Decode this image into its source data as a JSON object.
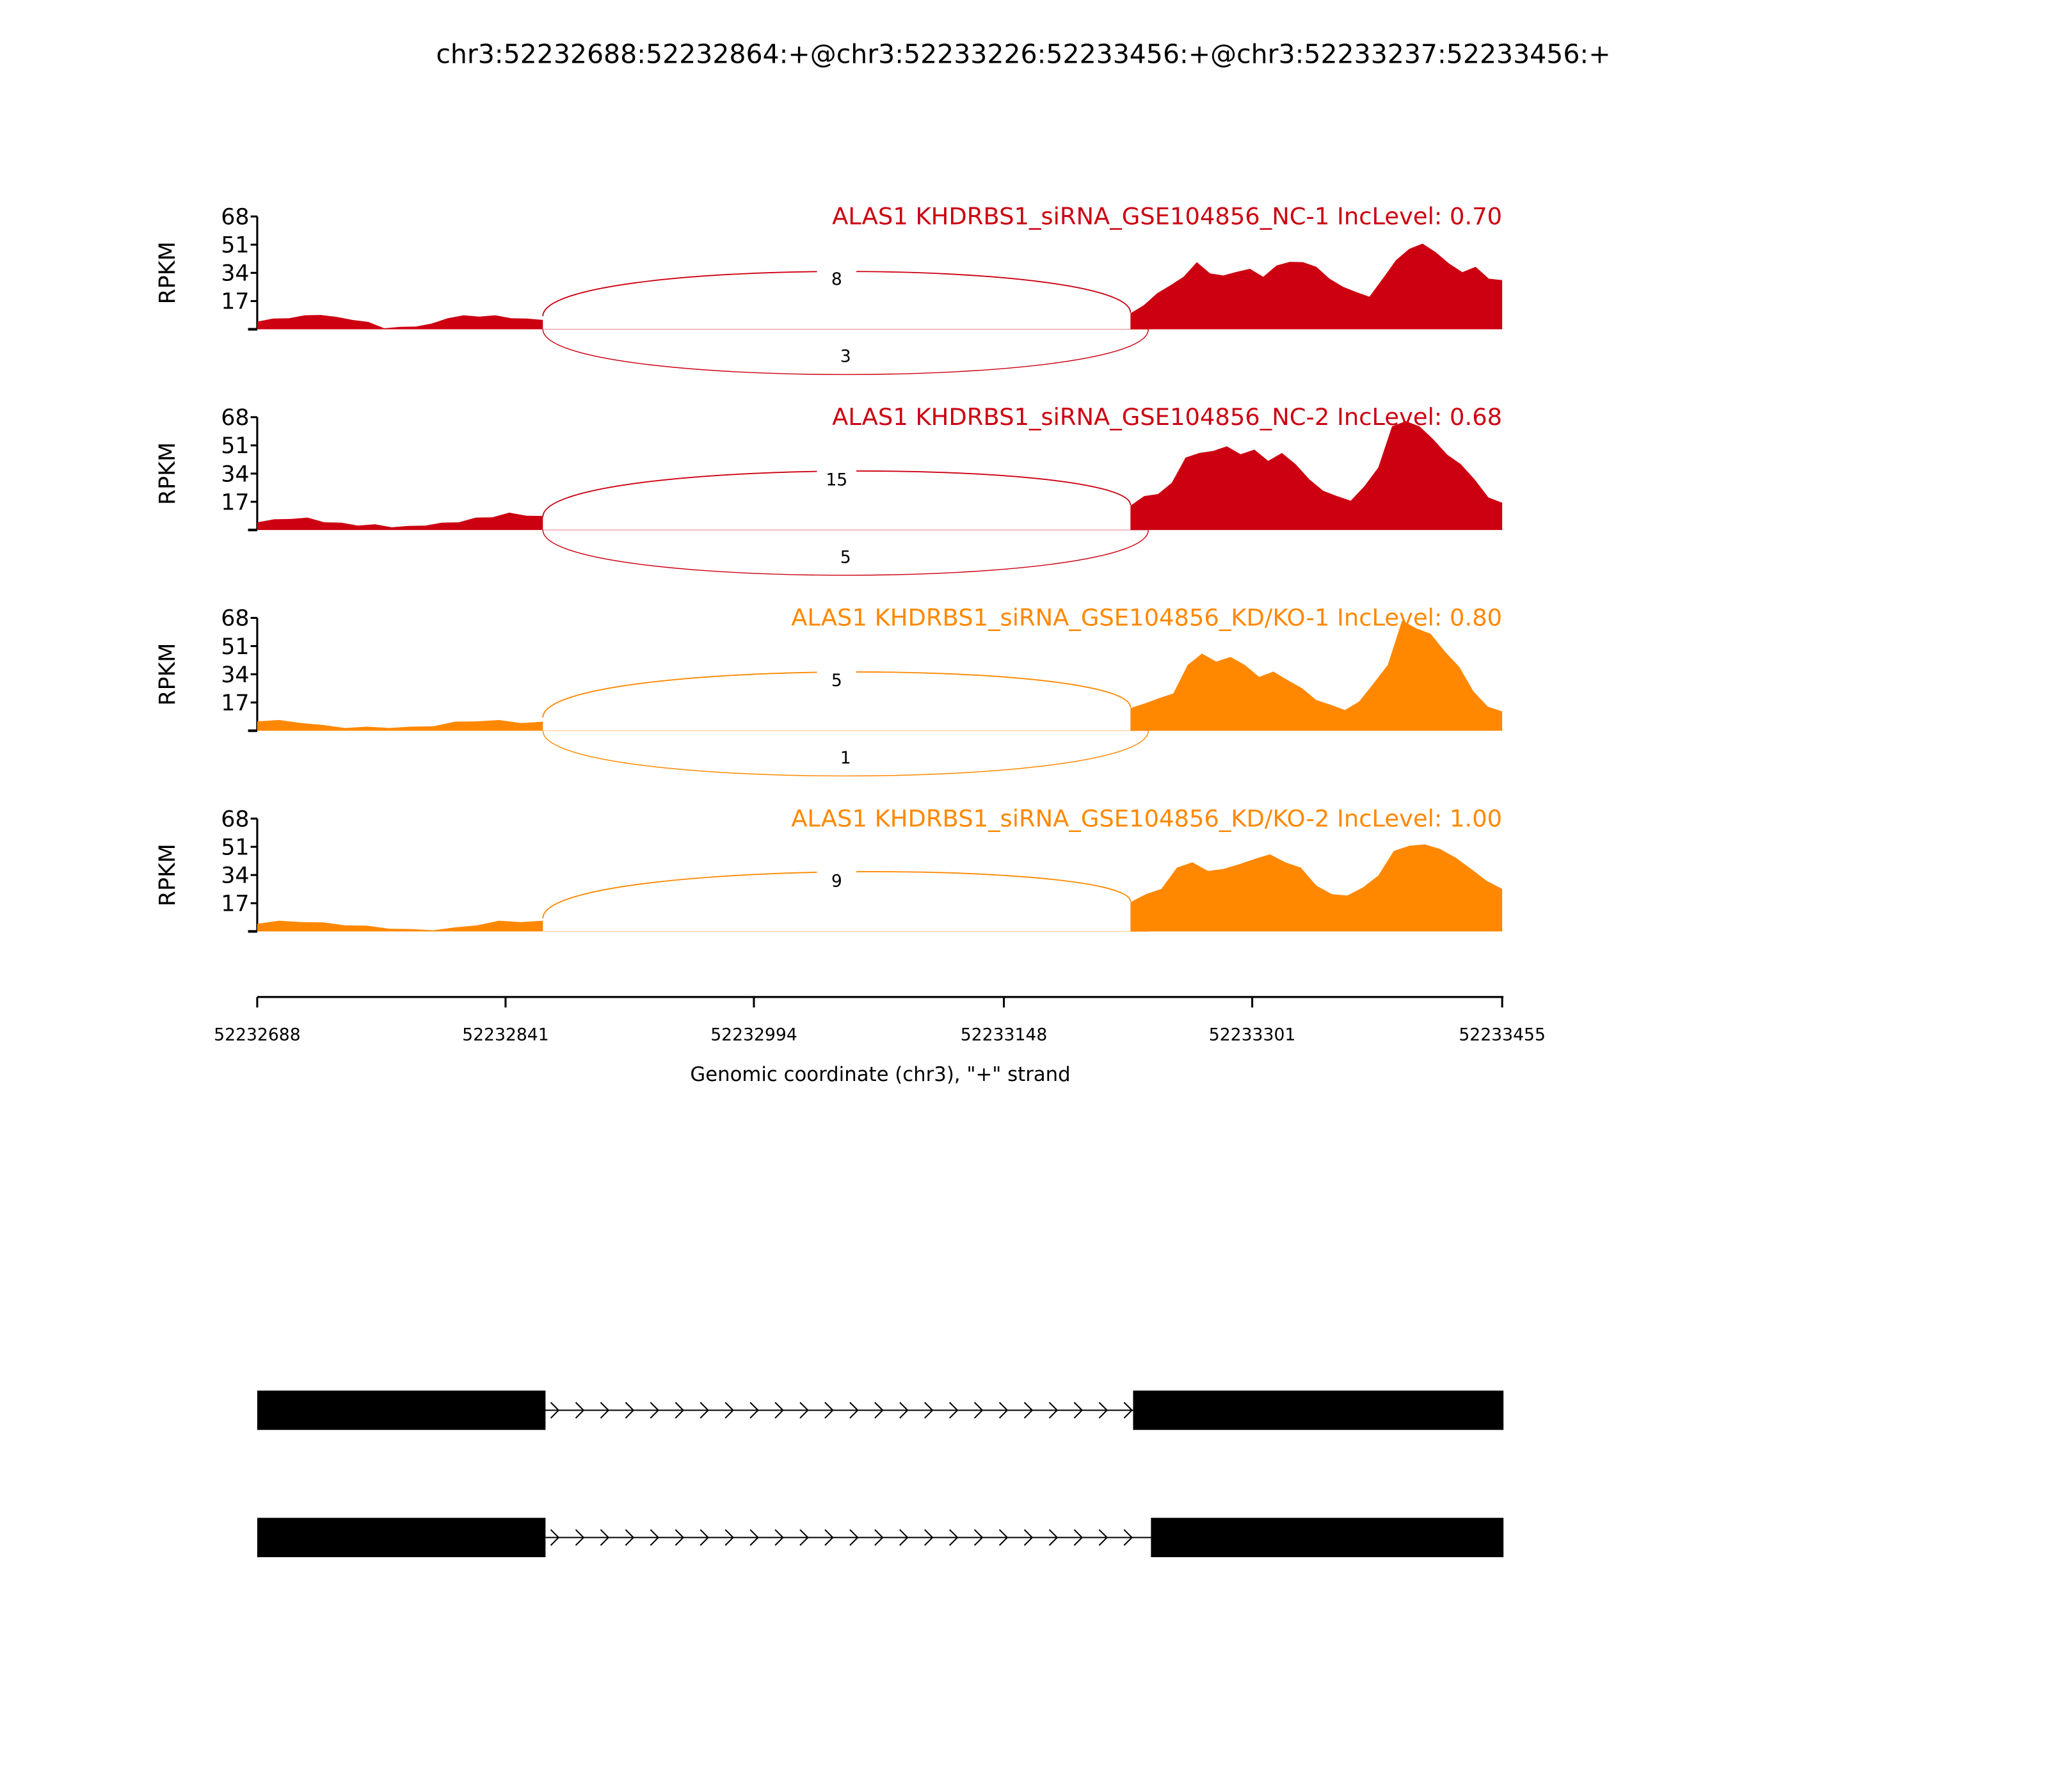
{
  "chart_data": {
    "type": "area",
    "title": "chr3:52232688:52232864:+@chr3:52233226:52233456:+@chr3:52233237:52233456:+",
    "xlabel": "Genomic coordinate (chr3), \"+\" strand",
    "ylabel": "RPKM",
    "xlim": [
      52232688,
      52233455
    ],
    "ylim": [
      0,
      68
    ],
    "yticks": [
      "17",
      "34",
      "51",
      "68"
    ],
    "xticks": [
      "52232688",
      "52232841",
      "52232994",
      "52233148",
      "52233301",
      "52233455"
    ],
    "exons": {
      "exon1": [
        52232688,
        52232864
      ],
      "exon2a": [
        52233226,
        52233456
      ],
      "exon2b": [
        52233237,
        52233456
      ]
    },
    "series": [
      {
        "name": "ALAS1 KHDRBS1_siRNA_GSE104856_NC-1 IncLevel: 0.70",
        "color": "#cc0011",
        "exon1": [
          5,
          6,
          7,
          8,
          9,
          7,
          6,
          4,
          1,
          1,
          2,
          3,
          7,
          8,
          8,
          8,
          7,
          6,
          6
        ],
        "exon2": [
          10,
          14,
          22,
          26,
          32,
          40,
          34,
          32,
          35,
          36,
          32,
          38,
          41,
          40,
          38,
          30,
          26,
          22,
          20,
          30,
          42,
          48,
          52,
          46,
          40,
          34,
          38,
          30,
          30
        ],
        "junction_inclusion": "8",
        "junction_skipping": "3"
      },
      {
        "name": "ALAS1 KHDRBS1_siRNA_GSE104856_NC-2 IncLevel: 0.68",
        "color": "#cc0011",
        "exon1": [
          5,
          6,
          7,
          7,
          5,
          4,
          3,
          3,
          2,
          2,
          3,
          4,
          5,
          7,
          8,
          10,
          9,
          8
        ],
        "exon2": [
          15,
          20,
          22,
          28,
          44,
          46,
          48,
          50,
          46,
          48,
          42,
          46,
          40,
          30,
          24,
          20,
          18,
          26,
          38,
          62,
          66,
          62,
          55,
          45,
          40,
          30,
          20,
          16
        ],
        "junction_inclusion": "15",
        "junction_skipping": "5"
      },
      {
        "name": "ALAS1 KHDRBS1_siRNA_GSE104856_KD/KO-1 IncLevel: 0.80",
        "color": "#ff8800",
        "exon1": [
          6,
          6,
          5,
          3,
          2,
          2,
          2,
          2,
          3,
          5,
          6,
          6,
          5,
          5
        ],
        "exon2": [
          14,
          16,
          20,
          22,
          40,
          46,
          42,
          44,
          40,
          32,
          36,
          30,
          26,
          18,
          16,
          12,
          18,
          28,
          40,
          66,
          62,
          58,
          48,
          38,
          24,
          14,
          12
        ],
        "junction_inclusion": "5",
        "junction_skipping": "1"
      },
      {
        "name": "ALAS1 KHDRBS1_siRNA_GSE104856_KD/KO-2 IncLevel: 1.00",
        "color": "#ff8800",
        "exon1": [
          5,
          6,
          6,
          5,
          4,
          3,
          2,
          1,
          1,
          2,
          4,
          6,
          6,
          6
        ],
        "exon2": [
          18,
          22,
          26,
          38,
          42,
          36,
          38,
          40,
          44,
          46,
          42,
          38,
          28,
          22,
          22,
          26,
          34,
          48,
          52,
          52,
          50,
          44,
          38,
          30,
          26
        ],
        "junction_inclusion": "9"
      }
    ]
  }
}
